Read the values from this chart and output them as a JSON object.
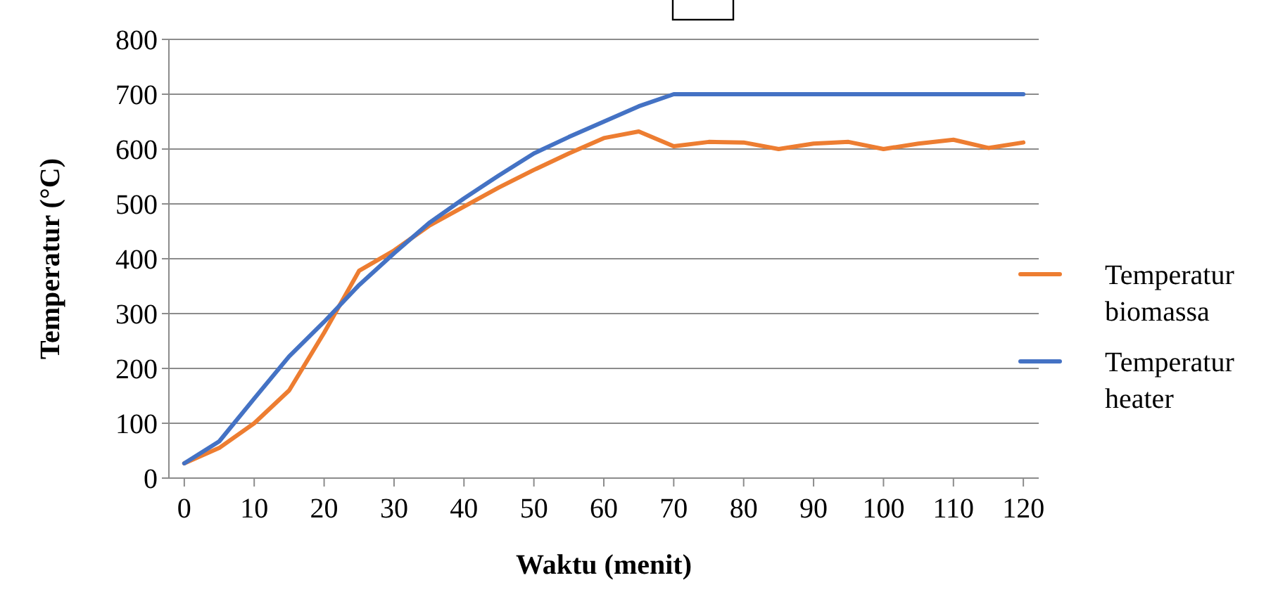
{
  "chart_data": {
    "type": "line",
    "xlabel": "Waktu (menit)",
    "ylabel": "Temperatur (°C)",
    "x": [
      0,
      5,
      10,
      15,
      20,
      25,
      30,
      35,
      40,
      45,
      50,
      55,
      60,
      65,
      70,
      75,
      80,
      85,
      90,
      95,
      100,
      105,
      110,
      115,
      120
    ],
    "series": [
      {
        "name": "Temperatur biomassa",
        "color": "#ed7d31",
        "values": [
          27,
          55,
          100,
          160,
          265,
          378,
          415,
          460,
          495,
          530,
          562,
          592,
          620,
          632,
          605,
          613,
          612,
          600,
          610,
          613,
          600,
          610,
          617,
          602,
          612
        ]
      },
      {
        "name": "Temperatur heater",
        "color": "#4472c4",
        "values": [
          27,
          67,
          145,
          222,
          285,
          352,
          410,
          465,
          510,
          552,
          592,
          622,
          650,
          678,
          700,
          700,
          700,
          700,
          700,
          700,
          700,
          700,
          700,
          700,
          700
        ]
      }
    ],
    "xlim": [
      -2.2,
      122.2
    ],
    "xticks": [
      0,
      10,
      20,
      30,
      40,
      50,
      60,
      70,
      80,
      90,
      100,
      110,
      120
    ],
    "ylim": [
      0,
      800
    ],
    "yticks": [
      0,
      100,
      200,
      300,
      400,
      500,
      600,
      700,
      800
    ],
    "grid": "y",
    "legend": "right",
    "marker": "none",
    "line_style": "solid"
  }
}
